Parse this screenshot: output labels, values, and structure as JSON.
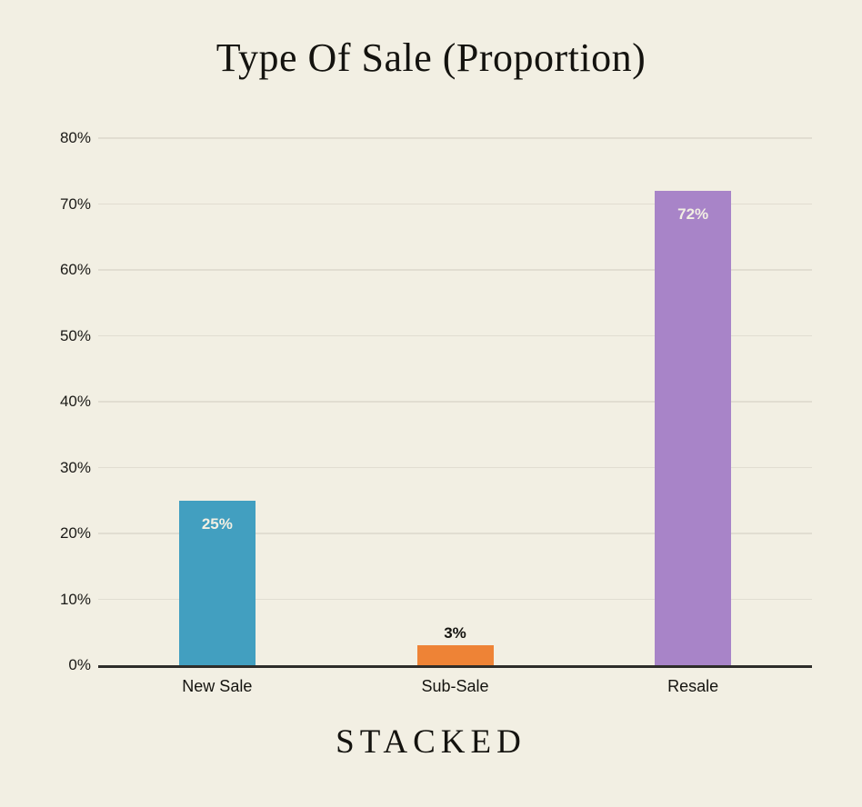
{
  "title": "Type Of Sale (Proportion)",
  "footer": {
    "brand": "STACKED"
  },
  "colors": {
    "background": "#f2efe3",
    "grid": "#e1ddd1",
    "axis": "#2e2d2a",
    "text": "#14130f",
    "value_label_inside": "#f2efe3",
    "value_label_outside": "#14130f"
  },
  "chart_data": {
    "type": "bar",
    "title": "Type Of Sale (Proportion)",
    "categories": [
      "New Sale",
      "Sub-Sale",
      "Resale"
    ],
    "values": [
      25,
      3,
      72
    ],
    "value_labels": [
      "25%",
      "3%",
      "72%"
    ],
    "bar_colors": [
      "#429fc0",
      "#ee8336",
      "#a884c8"
    ],
    "xlabel": "",
    "ylabel": "",
    "ylim": [
      0,
      80
    ],
    "ytick_step": 10,
    "ytick_labels": [
      "0%",
      "10%",
      "20%",
      "30%",
      "40%",
      "50%",
      "60%",
      "70%",
      "80%"
    ],
    "grid": true,
    "legend": false
  }
}
